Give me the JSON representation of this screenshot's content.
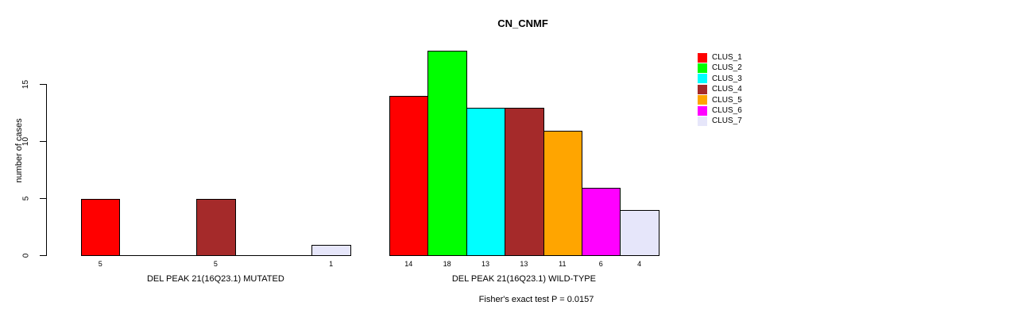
{
  "title": "CN_CNMF",
  "chart_data": {
    "type": "bar",
    "title": "CN_CNMF",
    "ylabel": "number of cases",
    "yticks": [
      0,
      5,
      10,
      15
    ],
    "ylim": [
      0,
      18
    ],
    "grid": false,
    "legend_position": "right",
    "clusters": [
      {
        "name": "CLUS_1",
        "color": "#FF0000"
      },
      {
        "name": "CLUS_2",
        "color": "#00FF00"
      },
      {
        "name": "CLUS_3",
        "color": "#00FFFF"
      },
      {
        "name": "CLUS_4",
        "color": "#A52A2A"
      },
      {
        "name": "CLUS_5",
        "color": "#FFA500"
      },
      {
        "name": "CLUS_6",
        "color": "#FF00FF"
      },
      {
        "name": "CLUS_7",
        "color": "#E6E6FA"
      }
    ],
    "groups": [
      {
        "label": "DEL PEAK 21(16Q23.1) MUTATED",
        "values": [
          5,
          0,
          0,
          5,
          0,
          0,
          1
        ]
      },
      {
        "label": "DEL PEAK 21(16Q23.1) WILD-TYPE",
        "values": [
          14,
          18,
          13,
          13,
          11,
          6,
          4
        ]
      }
    ],
    "annotation": "Fisher's exact test P = 0.0157"
  }
}
